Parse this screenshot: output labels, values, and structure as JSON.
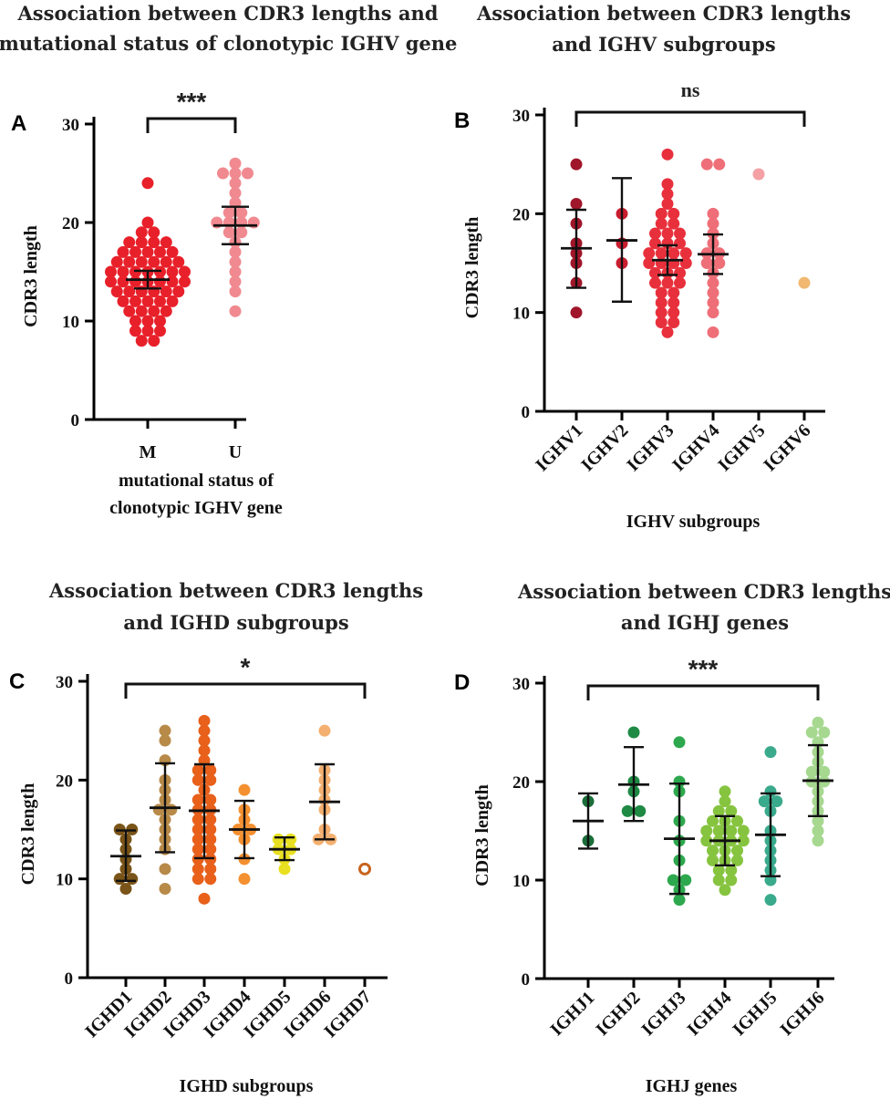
{
  "chart_data": [
    {
      "type": "scatter",
      "panel": "A",
      "title_lines": [
        "Association between CDR3 lengths and",
        "mutational status of clonotypic IGHV gene"
      ],
      "ylabel": "CDR3 length",
      "xlabel_lines": [
        "mutational status of",
        "clonotypic IGHV gene"
      ],
      "ylim": [
        0,
        30
      ],
      "yticks": [
        0,
        10,
        20,
        30
      ],
      "significance": "***",
      "bracket": [
        "M",
        "U"
      ],
      "groups": [
        {
          "label": "M",
          "color": "#e8202a",
          "mean": 14.2,
          "ci": [
            13.3,
            15.1
          ],
          "values": [
            24,
            20,
            19,
            19,
            18,
            18,
            18,
            18,
            17,
            17,
            17,
            17,
            17,
            16,
            16,
            16,
            16,
            16,
            16,
            15,
            15,
            15,
            15,
            15,
            15,
            15,
            14,
            14,
            14,
            14,
            14,
            14,
            14,
            13,
            13,
            13,
            13,
            13,
            13,
            12,
            12,
            12,
            12,
            12,
            11,
            11,
            11,
            11,
            10,
            10,
            10,
            9,
            9,
            9,
            8,
            8
          ]
        },
        {
          "label": "U",
          "color": "#f08a90",
          "mean": 19.7,
          "ci": [
            17.8,
            21.6
          ],
          "values": [
            26,
            25,
            25,
            25,
            24,
            23,
            22,
            21,
            21,
            20,
            20,
            20,
            20,
            19,
            19,
            18,
            17,
            16,
            15,
            14,
            13,
            11
          ]
        }
      ]
    },
    {
      "type": "scatter",
      "panel": "B",
      "title_lines": [
        "Association between CDR3 lengths",
        "and IGHV subgroups"
      ],
      "ylabel": "CDR3 length",
      "xlabel": "IGHV subgroups",
      "ylim": [
        0,
        30
      ],
      "yticks": [
        0,
        10,
        20,
        30
      ],
      "significance": "ns",
      "bracket": [
        "IGHV1",
        "IGHV6"
      ],
      "groups": [
        {
          "label": "IGHV1",
          "color": "#a0162a",
          "mean": 16.5,
          "ci": [
            12.5,
            20.4
          ],
          "values": [
            25,
            21,
            19,
            17,
            16,
            15,
            13,
            10
          ]
        },
        {
          "label": "IGHV2",
          "color": "#c81e30",
          "mean": 17.3,
          "ci": [
            11.1,
            23.6
          ],
          "values": [
            20,
            17,
            15
          ]
        },
        {
          "label": "IGHV3",
          "color": "#e8303c",
          "mean": 15.3,
          "ci": [
            13.8,
            16.8
          ],
          "values": [
            26,
            23,
            22,
            21,
            20,
            20,
            19,
            19,
            18,
            18,
            18,
            17,
            17,
            17,
            16,
            16,
            16,
            16,
            15,
            15,
            15,
            15,
            14,
            14,
            14,
            13,
            13,
            13,
            12,
            12,
            11,
            11,
            10,
            10,
            9,
            9,
            8
          ]
        },
        {
          "label": "IGHV4",
          "color": "#ee6f78",
          "mean": 15.9,
          "ci": [
            13.9,
            17.9
          ],
          "values": [
            25,
            25,
            20,
            19,
            18,
            17,
            16,
            16,
            15,
            15,
            14,
            13,
            12,
            11,
            10,
            8
          ]
        },
        {
          "label": "IGHV5",
          "color": "#f4a0a4",
          "mean": null,
          "ci": null,
          "values": [
            24
          ]
        },
        {
          "label": "IGHV6",
          "color": "#f0b870",
          "mean": null,
          "ci": null,
          "values": [
            13
          ]
        }
      ]
    },
    {
      "type": "scatter",
      "panel": "C",
      "title_lines": [
        "Association between CDR3 lengths",
        "and IGHD subgroups"
      ],
      "ylabel": "CDR3 length",
      "xlabel": "IGHD subgroups",
      "ylim": [
        0,
        30
      ],
      "yticks": [
        0,
        10,
        20,
        30
      ],
      "significance": "*",
      "bracket": [
        "IGHD1",
        "IGHD7"
      ],
      "groups": [
        {
          "label": "IGHD1",
          "color": "#7a5418",
          "mean": 12.3,
          "ci": [
            9.8,
            14.9
          ],
          "values": [
            15,
            15,
            14,
            13,
            12,
            11,
            10,
            10,
            9
          ]
        },
        {
          "label": "IGHD2",
          "color": "#b88a48",
          "mean": 17.2,
          "ci": [
            12.7,
            21.7
          ],
          "values": [
            25,
            24,
            22,
            20,
            19,
            18,
            17,
            17,
            16,
            15,
            14,
            13,
            11,
            9
          ]
        },
        {
          "label": "IGHD3",
          "color": "#e8601a",
          "mean": 16.9,
          "ci": [
            12.1,
            21.6
          ],
          "values": [
            26,
            25,
            24,
            23,
            22,
            21,
            21,
            20,
            20,
            19,
            18,
            18,
            17,
            17,
            16,
            16,
            15,
            15,
            14,
            14,
            13,
            13,
            12,
            12,
            11,
            11,
            10,
            10,
            8
          ]
        },
        {
          "label": "IGHD4",
          "color": "#f49030",
          "mean": 15.0,
          "ci": [
            12.1,
            17.9
          ],
          "values": [
            19,
            17,
            16,
            15,
            15,
            14,
            12,
            10
          ]
        },
        {
          "label": "IGHD5",
          "color": "#e8e020",
          "mean": 13.0,
          "ci": [
            11.9,
            14.2
          ],
          "values": [
            14,
            14,
            13,
            13,
            12,
            11
          ]
        },
        {
          "label": "IGHD6",
          "color": "#f4b070",
          "mean": 17.8,
          "ci": [
            14.0,
            21.6
          ],
          "values": [
            25,
            21,
            20,
            19,
            18,
            17,
            15,
            14,
            14
          ]
        },
        {
          "label": "IGHD7",
          "color": "#c8641e",
          "mean": null,
          "ci": null,
          "values": [
            11
          ],
          "hollow": true
        }
      ]
    },
    {
      "type": "scatter",
      "panel": "D",
      "title_lines": [
        "Association between CDR3 lengths",
        "and IGHJ genes"
      ],
      "ylabel": "CDR3 length",
      "xlabel": "IGHJ genes",
      "ylim": [
        0,
        30
      ],
      "yticks": [
        0,
        10,
        20,
        30
      ],
      "significance": "***",
      "bracket": [
        "IGHJ1",
        "IGHJ6"
      ],
      "groups": [
        {
          "label": "IGHJ1",
          "color": "#1a6e3a",
          "mean": 16.0,
          "ci": [
            13.2,
            18.8
          ],
          "values": [
            18,
            14
          ]
        },
        {
          "label": "IGHJ2",
          "color": "#1f8a44",
          "mean": 19.7,
          "ci": [
            16.0,
            23.5
          ],
          "values": [
            25,
            20,
            19,
            17,
            17
          ]
        },
        {
          "label": "IGHJ3",
          "color": "#2ea84e",
          "mean": 14.2,
          "ci": [
            8.6,
            19.8
          ],
          "values": [
            24,
            20,
            19,
            16,
            14,
            12,
            10,
            10,
            8,
            9
          ]
        },
        {
          "label": "IGHJ4",
          "color": "#86c440",
          "mean": 14.0,
          "ci": [
            11.5,
            16.5
          ],
          "values": [
            19,
            18,
            17,
            17,
            16,
            16,
            16,
            15,
            15,
            15,
            15,
            14,
            14,
            14,
            14,
            13,
            13,
            13,
            12,
            12,
            12,
            11,
            11,
            10,
            10,
            9
          ]
        },
        {
          "label": "IGHJ5",
          "color": "#3aaa8c",
          "mean": 14.6,
          "ci": [
            10.4,
            18.8
          ],
          "values": [
            23,
            19,
            18,
            18,
            17,
            15,
            14,
            13,
            12,
            11,
            10,
            8
          ]
        },
        {
          "label": "IGHJ6",
          "color": "#a6d890",
          "mean": 20.1,
          "ci": [
            16.5,
            23.7
          ],
          "values": [
            26,
            25,
            25,
            24,
            23,
            22,
            21,
            21,
            20,
            20,
            19,
            18,
            17,
            16,
            15,
            14
          ]
        }
      ]
    }
  ]
}
